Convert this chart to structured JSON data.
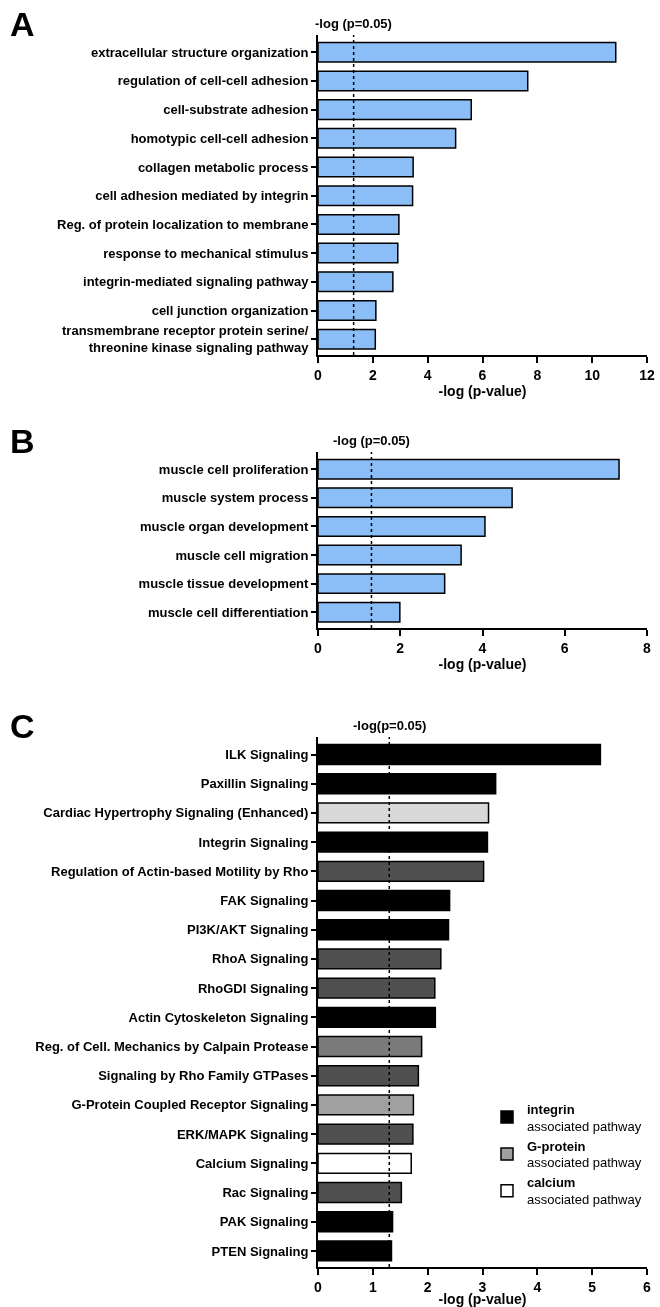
{
  "chart_data": [
    {
      "type": "bar",
      "title": "A",
      "orientation": "horizontal",
      "xlabel": "-log (p-value)",
      "xlim": [
        0,
        12
      ],
      "xticks": [
        0,
        2,
        4,
        6,
        8,
        10,
        12
      ],
      "legend": false,
      "categories": [
        "extracellular structure organization",
        "regulation of cell-cell adhesion",
        "cell-substrate adhesion",
        "homotypic cell-cell adhesion",
        "collagen metabolic process",
        "cell adhesion mediated by integrin",
        "Reg. of protein localization to membrane",
        "response to mechanical stimulus",
        "integrin-mediated signaling pathway",
        "cell junction organization",
        "transmembrane receptor protein serine/\nthreonine kinase signaling pathway"
      ],
      "series": [
        {
          "color": "#8bbdf7",
          "values": [
            10.86,
            7.65,
            5.59,
            5.02,
            3.47,
            3.45,
            2.95,
            2.91,
            2.73,
            2.11,
            2.09
          ]
        }
      ],
      "annotations": [
        "-log (p=0.05)"
      ],
      "ref_lines": [
        {
          "axis": "x",
          "value": 1.3,
          "color": "#000000",
          "line_style": "dotted"
        }
      ]
    },
    {
      "type": "bar",
      "title": "B",
      "orientation": "horizontal",
      "xlabel": "-log (p-value)",
      "xlim": [
        0,
        8
      ],
      "xticks": [
        0,
        2,
        4,
        6,
        8
      ],
      "legend": false,
      "categories": [
        "muscle cell proliferation",
        "muscle system process",
        "muscle organ development",
        "muscle cell migration",
        "muscle tissue development",
        "muscle cell differentiation"
      ],
      "series": [
        {
          "color": "#8bbdf7",
          "values": [
            7.32,
            4.72,
            4.06,
            3.48,
            3.08,
            1.99
          ]
        }
      ],
      "annotations": [
        "-log (p=0.05)"
      ],
      "ref_lines": [
        {
          "axis": "x",
          "value": 1.3,
          "color": "#000000",
          "line_style": "dotted"
        }
      ]
    },
    {
      "type": "bar",
      "title": "C",
      "orientation": "horizontal",
      "xlabel": "-log (p-value)",
      "xlim": [
        0,
        6
      ],
      "xticks": [
        0,
        1,
        2,
        3,
        4,
        5,
        6
      ],
      "legend": "bottom right",
      "categories": [
        "ILK Signaling",
        "Paxillin Signaling",
        "Cardiac Hypertrophy Signaling (Enhanced)",
        "Integrin Signaling",
        "Regulation of Actin-based Motility by Rho",
        "FAK Signaling",
        "PI3K/AKT Signaling",
        "RhoA Signaling",
        "RhoGDI Signaling",
        "Actin Cytoskeleton Signaling",
        "Reg. of Cell. Mechanics by Calpain Protease",
        "Signaling by Rho Family GTPases",
        "G-Protein Coupled Receptor Signaling",
        "ERK/MAPK Signaling",
        "Calcium Signaling",
        "Rac Signaling",
        "PAK Signaling",
        "PTEN Signaling"
      ],
      "series": [
        {
          "name": "integrin\nassociated pathway",
          "color": "#000000",
          "values": [
            5.15,
            3.24,
            null,
            3.09,
            null,
            2.4,
            2.38,
            null,
            null,
            2.14,
            null,
            null,
            null,
            null,
            null,
            null,
            1.36,
            1.34
          ]
        },
        {
          "name": "G-protein\nassociated pathway",
          "color": "#a0a0a0",
          "values": [
            null,
            null,
            null,
            null,
            null,
            null,
            null,
            null,
            null,
            null,
            null,
            null,
            1.74,
            null,
            null,
            null,
            null,
            null
          ]
        },
        {
          "name": "calcium\nassociated pathway",
          "color": "#ffffff",
          "values": [
            null,
            null,
            null,
            null,
            null,
            null,
            null,
            null,
            null,
            null,
            null,
            null,
            null,
            null,
            1.7,
            null,
            null,
            null
          ]
        },
        {
          "color": "#505050",
          "values": [
            null,
            null,
            null,
            null,
            3.02,
            null,
            null,
            2.24,
            2.13,
            null,
            null,
            1.83,
            null,
            1.73,
            null,
            1.52,
            null,
            null
          ]
        },
        {
          "color": "#7a7a7a",
          "values": [
            null,
            null,
            null,
            null,
            null,
            null,
            null,
            null,
            null,
            null,
            1.89,
            null,
            null,
            null,
            null,
            null,
            null,
            null
          ]
        },
        {
          "color": "#d8d8d8",
          "values": [
            null,
            null,
            3.11,
            null,
            null,
            null,
            null,
            null,
            null,
            null,
            null,
            null,
            null,
            null,
            null,
            null,
            null,
            null
          ]
        }
      ],
      "annotations": [
        "-log(p=0.05)"
      ],
      "ref_lines": [
        {
          "axis": "x",
          "value": 1.3,
          "color": "#000000",
          "line_style": "dotted"
        }
      ]
    }
  ]
}
